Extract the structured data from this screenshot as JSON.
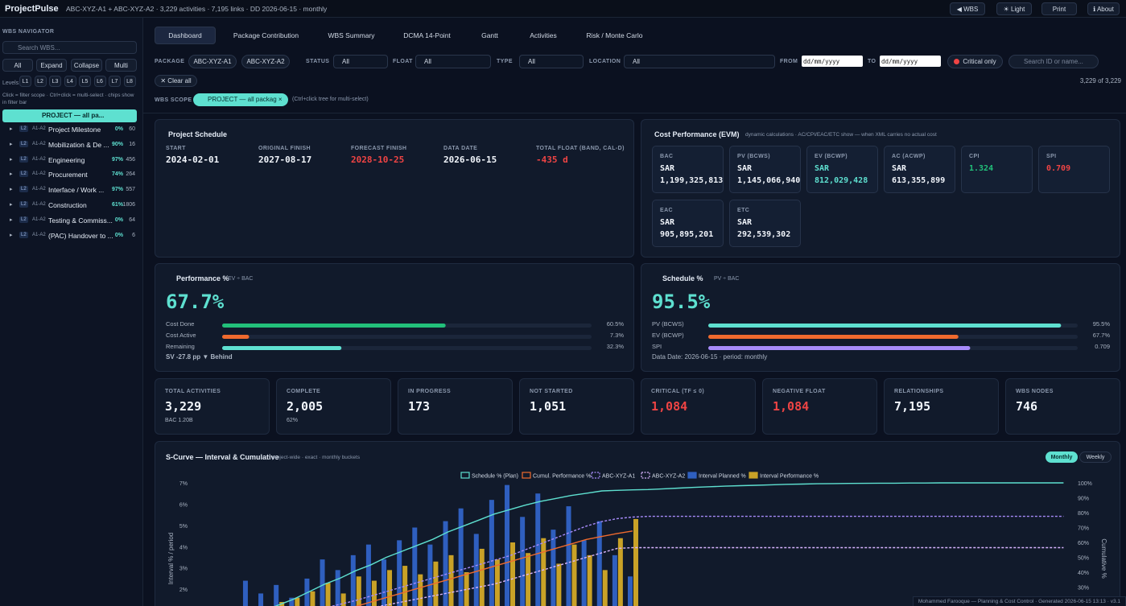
{
  "topbar": {
    "logo": "ProjectPulse",
    "info": "ABC-XYZ-A1 + ABC-XYZ-A2 · 3,229 activities · 7,195 links · DD 2026-06-15 · monthly",
    "buttons": [
      "◀ WBS",
      "☀ Light",
      "Print",
      "ℹ About"
    ]
  },
  "sidebar": {
    "title": "WBS NAVIGATOR",
    "search": "Search WBS...",
    "buttons": [
      "All",
      "Expand",
      "Collapse",
      "Multi"
    ],
    "levels_label": "Levels",
    "levels": [
      "L1",
      "L2",
      "L3",
      "L4",
      "L5",
      "L6",
      "L7",
      "L8"
    ],
    "hint": "Click = filter scope · Ctrl+click = multi-select · chips show in filter bar",
    "root": "PROJECT — all pa...",
    "tree": [
      {
        "level": "L2",
        "code": "A1-A2",
        "name": "Project Milestone",
        "pct": "0%",
        "count": "60"
      },
      {
        "level": "L2",
        "code": "A1-A2",
        "name": "Mobilization & De ...",
        "pct": "90%",
        "count": "16"
      },
      {
        "level": "L2",
        "code": "A1-A2",
        "name": "Engineering",
        "pct": "97%",
        "count": "456"
      },
      {
        "level": "L2",
        "code": "A1-A2",
        "name": "Procurement",
        "pct": "74%",
        "count": "264"
      },
      {
        "level": "L2",
        "code": "A1-A2",
        "name": "Interface / Work ...",
        "pct": "97%",
        "count": "557"
      },
      {
        "level": "L2",
        "code": "A1-A2",
        "name": "Construction",
        "pct": "61%",
        "count": "1806"
      },
      {
        "level": "L2",
        "code": "A1-A2",
        "name": "Testing & Commiss...",
        "pct": "0%",
        "count": "64"
      },
      {
        "level": "L2",
        "code": "A1-A2",
        "name": "(PAC) Handover to ...",
        "pct": "0%",
        "count": "6"
      }
    ]
  },
  "tabs": [
    "Dashboard",
    "Package Contribution",
    "WBS Summary",
    "DCMA 14-Point",
    "Gantt",
    "Activities",
    "Risk / Monte Carlo"
  ],
  "filters": {
    "package_label": "PACKAGE",
    "packages": [
      "ABC-XYZ-A1",
      "ABC-XYZ-A2"
    ],
    "selects": [
      {
        "label": "STATUS",
        "value": "All"
      },
      {
        "label": "FLOAT",
        "value": "All"
      },
      {
        "label": "TYPE",
        "value": "All"
      },
      {
        "label": "LOCATION",
        "value": "All"
      }
    ],
    "from_label": "FROM",
    "to_label": "TO",
    "date_placeholder": "dd/mm/yyyy",
    "critical": "Critical only",
    "search": "Search ID or name...",
    "clear": "✕ Clear all",
    "count": "3,229 of 3,229",
    "scope_label": "WBS SCOPE",
    "scope_chip": "PROJECT — all packag ×",
    "scope_hint": "(Ctrl+click tree for multi-select)"
  },
  "schedule": {
    "title": "Project Schedule",
    "fields": [
      {
        "label": "START",
        "value": "2024-02-01",
        "tone": "normal"
      },
      {
        "label": "ORIGINAL FINISH",
        "value": "2027-08-17",
        "tone": "normal"
      },
      {
        "label": "FORECAST FINISH",
        "value": "2028-10-25",
        "tone": "red"
      },
      {
        "label": "DATA DATE",
        "value": "2026-06-15",
        "tone": "normal"
      },
      {
        "label": "TOTAL FLOAT (BAND, CAL-D)",
        "value": "-435 d",
        "tone": "red"
      }
    ]
  },
  "evm": {
    "title": "Cost Performance (EVM)",
    "subtitle": "dynamic calculations · AC/CPI/EAC/ETC show — when XML carries no actual cost",
    "cells": [
      {
        "label": "BAC",
        "unit": "SAR",
        "value": "1,199,325,813",
        "tone": "normal"
      },
      {
        "label": "PV (BCWS)",
        "unit": "SAR",
        "value": "1,145,066,940",
        "tone": "normal"
      },
      {
        "label": "EV (BCWP)",
        "unit": "SAR",
        "value": "812,029,428",
        "tone": "teal"
      },
      {
        "label": "AC (ACWP)",
        "unit": "SAR",
        "value": "613,355,899",
        "tone": "normal"
      },
      {
        "label": "CPI",
        "value": "1.324",
        "tone": "green"
      },
      {
        "label": "SPI",
        "value": "0.709",
        "tone": "red"
      },
      {
        "label": "EAC",
        "unit": "SAR",
        "value": "905,895,201",
        "tone": "normal"
      },
      {
        "label": "ETC",
        "unit": "SAR",
        "value": "292,539,302",
        "tone": "normal"
      }
    ]
  },
  "performance": {
    "title": "Performance %",
    "subtitle": "EV ÷ BAC",
    "big": "67.7%",
    "footer": "SV -27.8 pp ▼ Behind",
    "bars": [
      {
        "label": "Cost Done",
        "value": 60.5,
        "value_label": "60.5%",
        "max": 100,
        "color": "#22c07a"
      },
      {
        "label": "Cost Active",
        "value": 7.3,
        "value_label": "7.3%",
        "max": 100,
        "color": "#ef6a2e"
      },
      {
        "label": "Remaining",
        "value": 32.3,
        "value_label": "32.3%",
        "max": 100,
        "color": "#5ee0d0"
      }
    ]
  },
  "schedule_pct": {
    "title": "Schedule %",
    "subtitle": "PV ÷ BAC",
    "big": "95.5%",
    "footer": "Data Date: 2026-06-15 · period: monthly",
    "bars": [
      {
        "label": "PV (BCWS)",
        "value": 95.5,
        "value_label": "95.5%",
        "max": 100,
        "color": "#5ee0d0"
      },
      {
        "label": "EV (BCWP)",
        "value": 67.7,
        "value_label": "67.7%",
        "max": 100,
        "color": "#ef6a2e"
      },
      {
        "label": "SPI",
        "value": 0.709,
        "max": 1,
        "color": "#a78bfa"
      }
    ]
  },
  "kpis": [
    {
      "label": "TOTAL ACTIVITIES",
      "value": "3,229",
      "sub": "BAC 1.20B",
      "tone": "normal"
    },
    {
      "label": "COMPLETE",
      "value": "2,005",
      "sub": "62%",
      "tone": "normal"
    },
    {
      "label": "IN PROGRESS",
      "value": "173",
      "tone": "normal"
    },
    {
      "label": "NOT STARTED",
      "value": "1,051",
      "tone": "normal"
    },
    {
      "label": "CRITICAL (TF ≤ 0)",
      "value": "1,084",
      "tone": "red"
    },
    {
      "label": "NEGATIVE FLOAT",
      "value": "1,084",
      "tone": "red"
    },
    {
      "label": "RELATIONSHIPS",
      "value": "7,195",
      "tone": "normal"
    },
    {
      "label": "WBS NODES",
      "value": "746",
      "tone": "normal"
    }
  ],
  "scurve": {
    "type": "bar-line",
    "title": "S-Curve — Interval & Cumulative",
    "subtitle": "project-wide · exact · monthly buckets",
    "toggles": [
      "Monthly",
      "Weekly"
    ],
    "ylabel": "Interval % / period",
    "y2label": "Cumulative %",
    "ylim": [
      0,
      7
    ],
    "yticks": [
      {
        "value": 2,
        "label": "2%"
      },
      {
        "value": 3,
        "label": "3%"
      },
      {
        "value": 4,
        "label": "4%"
      },
      {
        "value": 5,
        "label": "5%"
      },
      {
        "value": 6,
        "label": "6%"
      },
      {
        "value": 7,
        "label": "7%"
      }
    ],
    "y2lim": [
      0,
      100
    ],
    "y2ticks": [
      {
        "value": 30,
        "label": "30%"
      },
      {
        "value": 40,
        "label": "40%"
      },
      {
        "value": 50,
        "label": "50%"
      },
      {
        "value": 60,
        "label": "60%"
      },
      {
        "value": 70,
        "label": "70%"
      },
      {
        "value": 80,
        "label": "80%"
      },
      {
        "value": 90,
        "label": "90%"
      },
      {
        "value": 100,
        "label": "100%"
      }
    ],
    "grid": false,
    "categories": [
      null,
      null,
      null,
      null,
      null,
      null,
      null,
      null,
      null,
      null,
      null,
      null,
      null,
      null,
      null,
      null,
      null,
      null,
      null,
      null,
      null,
      null,
      null,
      null,
      null,
      null,
      null,
      null,
      null,
      null,
      null,
      null,
      null,
      null,
      null,
      null,
      null,
      null,
      null,
      null,
      null,
      null,
      null,
      null,
      null,
      null,
      null,
      null,
      null,
      null,
      null,
      null,
      null,
      null,
      null,
      null,
      null
    ],
    "series": [
      {
        "name": "Schedule % (Plan)",
        "color": "#5ee0d0",
        "style": "line",
        "dash": false,
        "axis": "y2",
        "values": [
          1,
          3,
          6,
          10,
          14,
          18,
          22,
          27,
          32,
          36,
          41,
          45,
          50,
          54,
          58,
          62,
          67,
          71,
          75,
          79,
          82,
          85,
          87.5,
          89.5,
          91.5,
          93,
          94.6,
          95,
          95.3,
          95.5,
          96,
          96.5,
          97,
          97.4,
          97.8,
          98.1,
          98.4,
          98.7,
          99,
          99.2,
          99.4,
          99.5,
          99.6,
          99.7,
          99.8,
          99.8,
          99.9,
          99.9,
          100,
          100,
          100,
          100,
          100,
          100,
          100,
          100,
          100
        ]
      },
      {
        "name": "Cumul. Performance %",
        "color": "#ef6a2e",
        "style": "line",
        "dash": false,
        "axis": "y2",
        "values": [
          0.5,
          1,
          2,
          3,
          4.5,
          6,
          8,
          10,
          12,
          14,
          17,
          20,
          23,
          26,
          29,
          32,
          35,
          38,
          41,
          44,
          47,
          50,
          53,
          56,
          59,
          62,
          64,
          66,
          67.7,
          null,
          null,
          null,
          null,
          null,
          null,
          null,
          null,
          null,
          null,
          null,
          null,
          null,
          null,
          null,
          null,
          null,
          null,
          null,
          null,
          null,
          null,
          null,
          null,
          null,
          null,
          null,
          null
        ]
      },
      {
        "name": "ABC-XYZ-A1",
        "color": "#a78bfa",
        "style": "line",
        "dash": true,
        "axis": "y2",
        "values": [
          1,
          2,
          4,
          6,
          8,
          10,
          12,
          14,
          16,
          18.5,
          21,
          24,
          27,
          30,
          33,
          36,
          39,
          42,
          45,
          48,
          51,
          55,
          59,
          63,
          67,
          71,
          74,
          76,
          77,
          77.5,
          77.5,
          77.5,
          77.5,
          77.5,
          77.5,
          77.5,
          77.5,
          77.5,
          77.5,
          77.5,
          77.5,
          77.5,
          77.5,
          77.5,
          77.5,
          77.5,
          77.5,
          77.5,
          77.5,
          77.5,
          77.5,
          77.5,
          77.5,
          77.5,
          77.5,
          77.5,
          77.5
        ]
      },
      {
        "name": "ABC-XYZ-A2",
        "color": "#d8b4fe",
        "style": "line",
        "dash": true,
        "axis": "y2",
        "values": [
          0.5,
          1,
          2,
          3,
          4,
          5.5,
          7,
          8.5,
          10,
          12,
          14,
          16,
          18,
          20,
          22,
          24,
          26,
          28,
          30,
          32,
          35,
          38,
          41,
          44,
          47,
          50,
          53,
          56,
          56.5,
          56.5,
          56.5,
          56.5,
          56.5,
          56.5,
          56.5,
          56.5,
          56.5,
          56.5,
          56.5,
          56.5,
          56.5,
          56.5,
          56.5,
          56.5,
          56.5,
          56.5,
          56.5,
          56.5,
          56.5,
          56.5,
          56.5,
          56.5,
          56.5,
          56.5,
          56.5,
          56.5,
          56.5
        ]
      },
      {
        "name": "Interval Planned %",
        "color": "#2f5fbf",
        "style": "bar",
        "axis": "y",
        "values": [
          0.4,
          0.8,
          1.2,
          2.4,
          1.8,
          2.2,
          1.6,
          2.5,
          3.4,
          2.9,
          3.6,
          4.1,
          3.4,
          4.3,
          4.9,
          4.1,
          5.2,
          5.8,
          4.6,
          6.2,
          6.9,
          5.4,
          6.5,
          4.8,
          5.9,
          4.3,
          5.2,
          3.6,
          2.6,
          null,
          null,
          null,
          null,
          null,
          null,
          null,
          null,
          null,
          null,
          null,
          null,
          null,
          null,
          null,
          null,
          null,
          null,
          null,
          null,
          null,
          null,
          null,
          null,
          null,
          null,
          null,
          null
        ]
      },
      {
        "name": "Interval Performance %",
        "color": "#c9a227",
        "style": "bar",
        "axis": "y",
        "values": [
          0.1,
          0.3,
          0.5,
          0.8,
          1.1,
          1.4,
          1.6,
          1.9,
          2.3,
          1.8,
          2.6,
          2.4,
          2.9,
          3.1,
          2.7,
          3.3,
          3.6,
          2.8,
          3.9,
          3.4,
          4.2,
          3.7,
          4.4,
          3.2,
          4.1,
          3.6,
          2.9,
          4.4,
          5.3,
          null,
          null,
          null,
          null,
          null,
          null,
          null,
          null,
          null,
          null,
          null,
          null,
          null,
          null,
          null,
          null,
          null,
          null,
          null,
          null,
          null,
          null,
          null,
          null,
          null,
          null,
          null,
          null
        ]
      }
    ]
  },
  "footer": "Mohammed Farooque — Planning & Cost Control · Generated 2026-06-15 13:13 · v3.1"
}
